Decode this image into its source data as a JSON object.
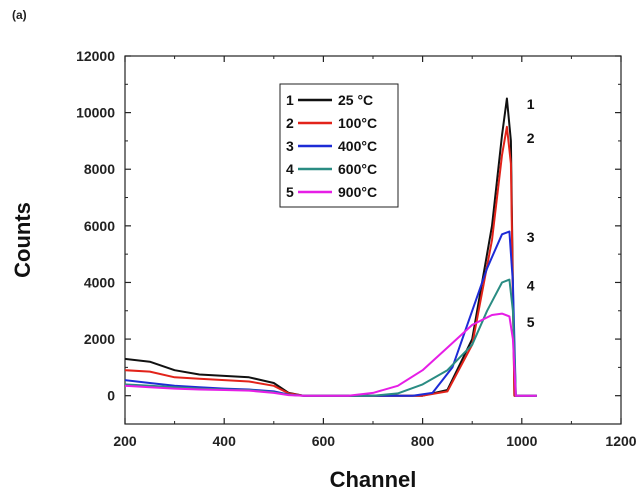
{
  "panel_label": "(a)",
  "chart_data": {
    "type": "line",
    "xlabel": "Channel",
    "ylabel": "Counts",
    "xlim": [
      200,
      1200
    ],
    "ylim": [
      -1000,
      12000
    ],
    "xticks": [
      200,
      400,
      600,
      800,
      1000,
      1200
    ],
    "yticks": [
      0,
      2000,
      4000,
      6000,
      8000,
      10000,
      12000
    ],
    "legend_position": "top-center",
    "series": [
      {
        "name": "25 °C",
        "index": "1",
        "color": "#111111",
        "x": [
          200,
          250,
          300,
          350,
          400,
          450,
          500,
          530,
          560,
          700,
          800,
          850,
          900,
          940,
          960,
          970,
          978,
          985,
          1000,
          1030
        ],
        "y": [
          1300,
          1200,
          900,
          750,
          700,
          650,
          450,
          100,
          0,
          0,
          0,
          200,
          2000,
          6000,
          9200,
          10500,
          9000,
          0,
          0,
          0
        ]
      },
      {
        "name": "100°C",
        "index": "2",
        "color": "#e2231a",
        "x": [
          200,
          250,
          300,
          350,
          400,
          450,
          500,
          530,
          560,
          700,
          800,
          850,
          900,
          940,
          960,
          970,
          978,
          985,
          1000,
          1030
        ],
        "y": [
          900,
          850,
          650,
          600,
          550,
          500,
          350,
          80,
          0,
          0,
          0,
          150,
          1800,
          5500,
          8500,
          9500,
          8200,
          0,
          0,
          0
        ]
      },
      {
        "name": "400°C",
        "index": "3",
        "color": "#1d2bd6",
        "x": [
          200,
          250,
          300,
          350,
          400,
          450,
          500,
          530,
          560,
          700,
          780,
          820,
          860,
          900,
          930,
          960,
          975,
          982,
          988,
          1000,
          1030
        ],
        "y": [
          550,
          450,
          350,
          300,
          250,
          220,
          150,
          40,
          0,
          0,
          0,
          100,
          1000,
          3000,
          4500,
          5700,
          5800,
          4000,
          0,
          0,
          0
        ]
      },
      {
        "name": "600°C",
        "index": "4",
        "color": "#2a8c83",
        "x": [
          200,
          250,
          300,
          350,
          400,
          450,
          500,
          530,
          560,
          700,
          750,
          800,
          850,
          900,
          930,
          960,
          975,
          982,
          988,
          1000,
          1030
        ],
        "y": [
          400,
          350,
          300,
          250,
          220,
          200,
          120,
          30,
          0,
          0,
          80,
          400,
          900,
          1800,
          3000,
          4000,
          4100,
          3000,
          0,
          0,
          0
        ]
      },
      {
        "name": "900°C",
        "index": "5",
        "color": "#e61ee6",
        "x": [
          200,
          250,
          300,
          350,
          400,
          450,
          500,
          530,
          560,
          650,
          700,
          750,
          800,
          850,
          900,
          940,
          960,
          975,
          982,
          988,
          1000,
          1030
        ],
        "y": [
          350,
          300,
          250,
          220,
          200,
          180,
          100,
          20,
          0,
          0,
          100,
          350,
          900,
          1700,
          2500,
          2850,
          2900,
          2800,
          2000,
          0,
          0,
          0
        ]
      }
    ],
    "curve_labels": [
      {
        "text": "1",
        "x": 1010,
        "y": 10300
      },
      {
        "text": "2",
        "x": 1010,
        "y": 9100
      },
      {
        "text": "3",
        "x": 1010,
        "y": 5600
      },
      {
        "text": "4",
        "x": 1010,
        "y": 3900
      },
      {
        "text": "5",
        "x": 1010,
        "y": 2600
      }
    ]
  }
}
